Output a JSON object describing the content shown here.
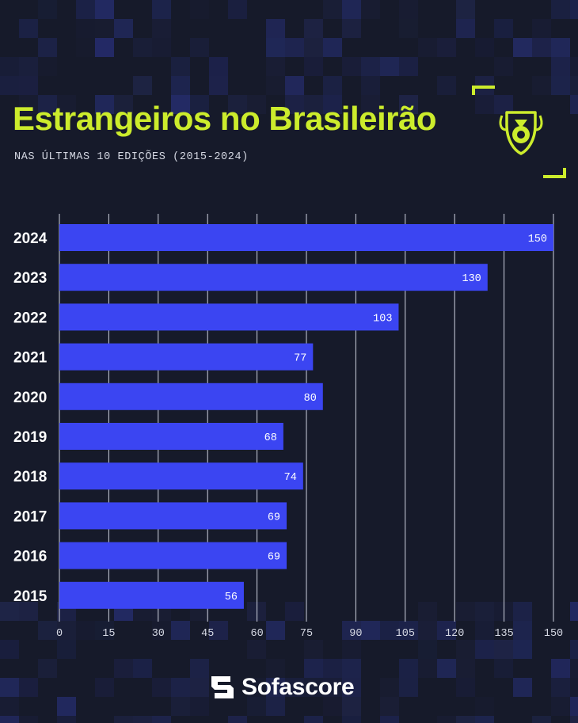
{
  "colors": {
    "background": "#161a2a",
    "accent": "#ccec2c",
    "bar": "#3b45f2",
    "grid": "#cfd3e0",
    "text": "#ffffff",
    "subtext": "#d4d7e2"
  },
  "header": {
    "title": "Estrangeiros no Brasileirão",
    "subtitle": "NAS ÚLTIMAS 10 EDIÇÕES (2015-2024)",
    "league_logo_icon": "brasileirao-trophy-logo-icon"
  },
  "chart_data": {
    "type": "bar",
    "orientation": "horizontal",
    "title": "Estrangeiros no Brasileirão",
    "subtitle": "NAS ÚLTIMAS 10 EDIÇÕES (2015-2024)",
    "categories": [
      "2024",
      "2023",
      "2022",
      "2021",
      "2020",
      "2019",
      "2018",
      "2017",
      "2016",
      "2015"
    ],
    "values": [
      150,
      130,
      103,
      77,
      80,
      68,
      74,
      69,
      69,
      56
    ],
    "xlim": [
      0,
      150
    ],
    "xticks": [
      0,
      15,
      30,
      45,
      60,
      75,
      90,
      105,
      120,
      135,
      150
    ],
    "xlabel": "",
    "ylabel": "",
    "grid": true,
    "data_labels": true
  },
  "footer": {
    "brand_name": "Sofascore",
    "brand_icon": "sofascore-logo-icon"
  }
}
